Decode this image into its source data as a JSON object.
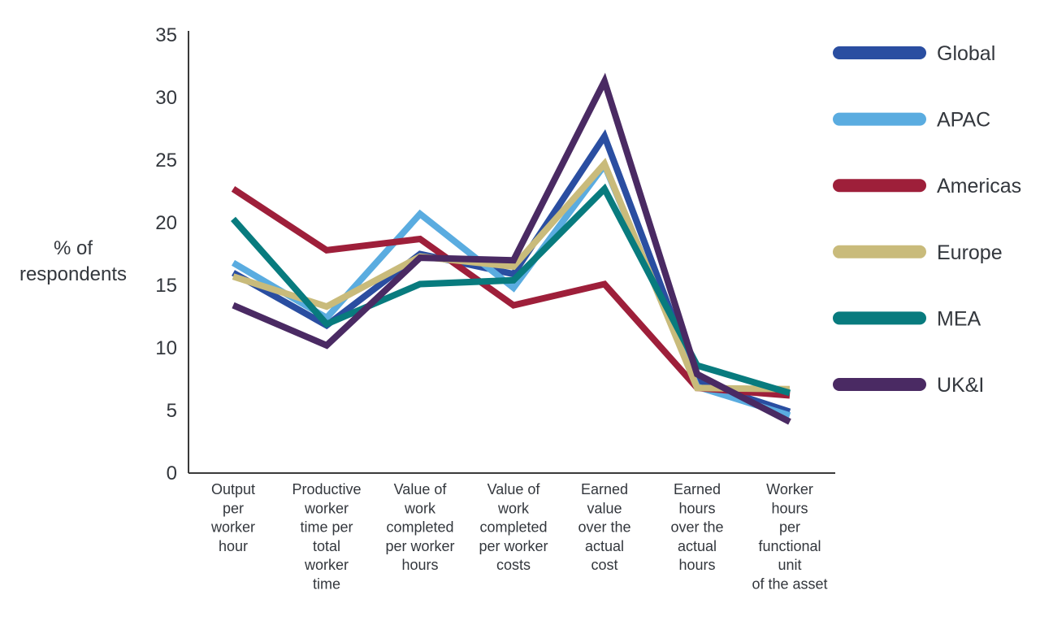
{
  "chart_data": {
    "type": "line",
    "ylabel": [
      "% of",
      "respondents"
    ],
    "ylim": [
      0,
      35
    ],
    "yticks": [
      0,
      5,
      10,
      15,
      20,
      25,
      30,
      35
    ],
    "grid": false,
    "legend_position": "right",
    "categories": [
      [
        "Output",
        "per",
        "worker",
        "hour"
      ],
      [
        "Productive",
        "worker",
        "time per",
        "total",
        "worker",
        "time"
      ],
      [
        "Value of",
        "work",
        "completed",
        "per worker",
        "hours"
      ],
      [
        "Value of",
        "work",
        "completed",
        "per worker",
        "costs"
      ],
      [
        "Earned",
        "value",
        "over the",
        "actual",
        "cost"
      ],
      [
        "Earned",
        "hours",
        "over the",
        "actual",
        "hours"
      ],
      [
        "Worker",
        "hours",
        "per",
        "functional",
        "unit",
        "of the asset"
      ]
    ],
    "series": [
      {
        "name": "Global",
        "color": "#2a4ea1",
        "values": [
          16.0,
          11.8,
          17.5,
          15.9,
          26.9,
          7.3,
          4.9
        ]
      },
      {
        "name": "APAC",
        "color": "#5aace0",
        "values": [
          16.8,
          12.4,
          20.7,
          14.8,
          24.6,
          6.9,
          4.6
        ]
      },
      {
        "name": "Americas",
        "color": "#9e1f3a",
        "values": [
          22.7,
          17.8,
          18.7,
          13.4,
          15.1,
          6.8,
          6.2
        ]
      },
      {
        "name": "Europe",
        "color": "#c9bb7b",
        "values": [
          15.7,
          13.3,
          17.3,
          16.5,
          24.7,
          6.8,
          6.7
        ]
      },
      {
        "name": "MEA",
        "color": "#087b7e",
        "values": [
          20.3,
          11.9,
          15.1,
          15.4,
          22.7,
          8.6,
          6.4
        ]
      },
      {
        "name": "UK&I",
        "color": "#4a2a63",
        "values": [
          13.4,
          10.2,
          17.2,
          17.0,
          31.3,
          7.9,
          4.1
        ]
      }
    ]
  }
}
